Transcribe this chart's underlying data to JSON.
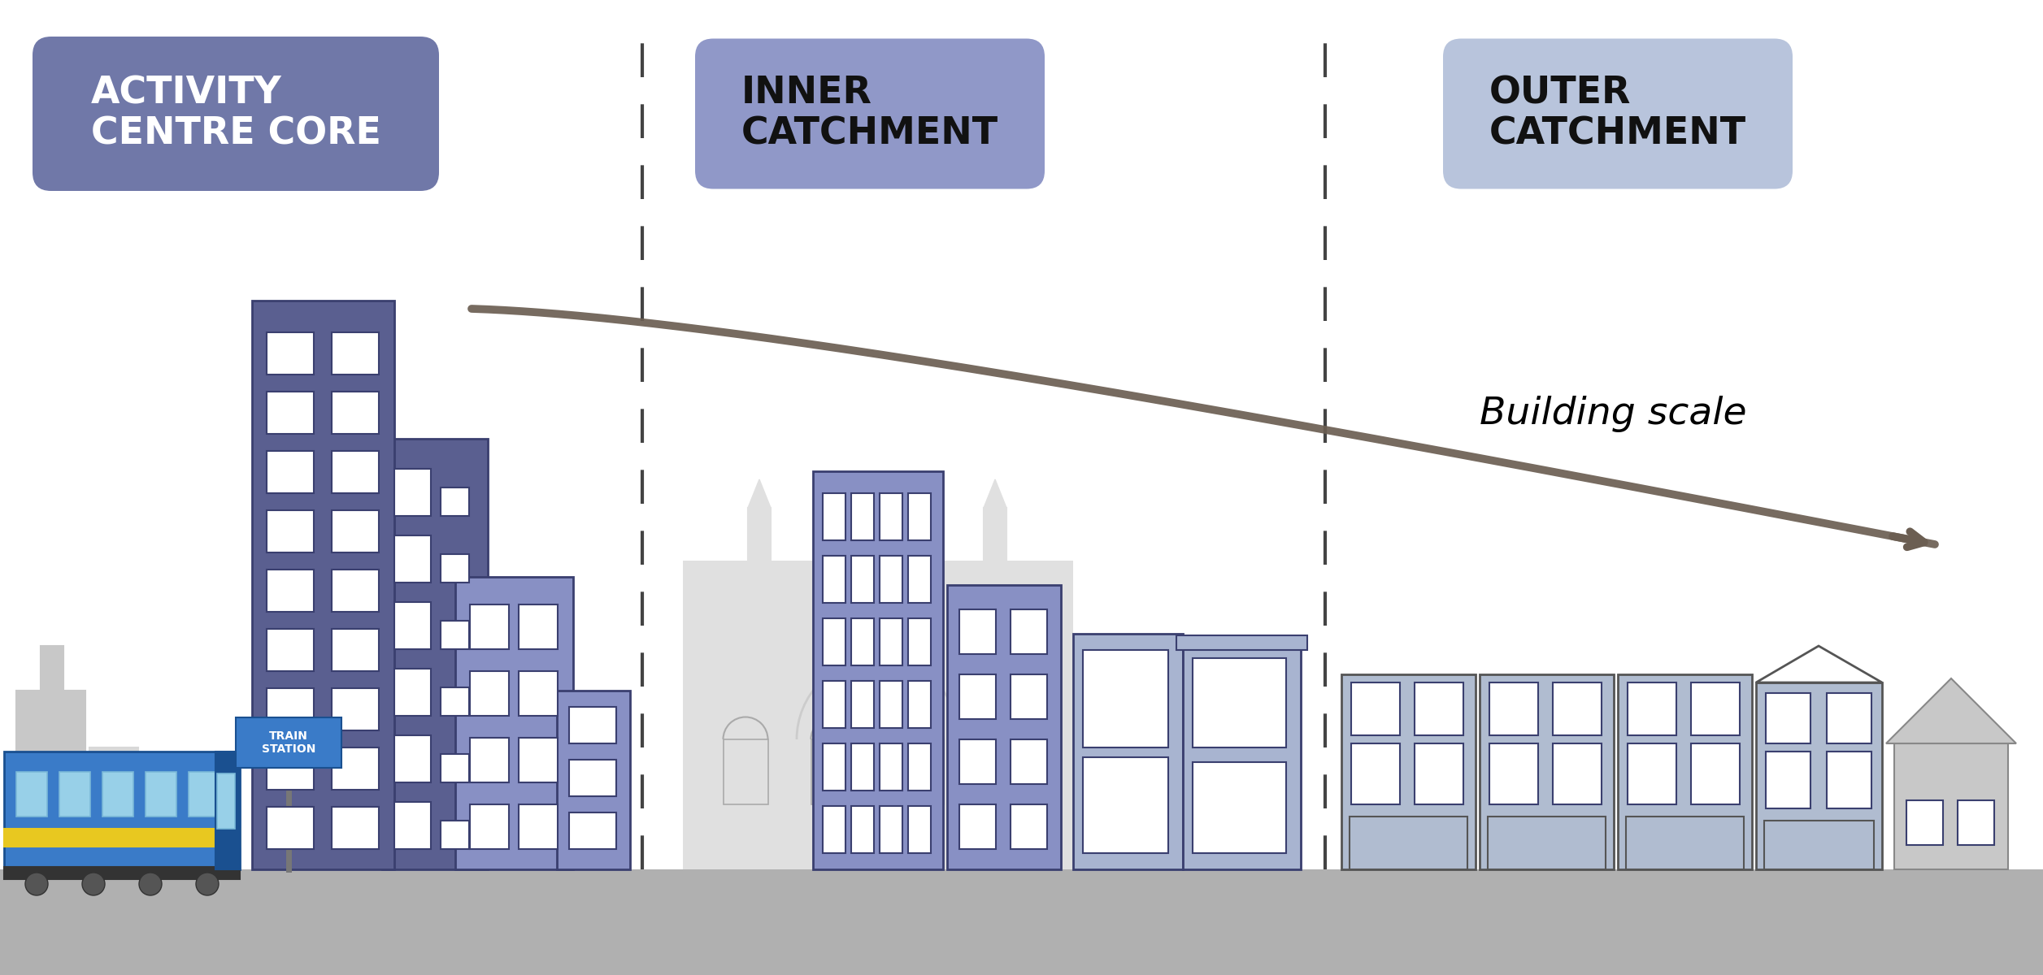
{
  "bg_color": "#ffffff",
  "ground_color": "#b8b8b8",
  "label_activity_core": "ACTIVITY\nCENTRE CORE",
  "label_inner": "INNER\nCATCHMENT",
  "label_outer": "OUTER\nCATCHMENT",
  "label_building_scale": "Building scale",
  "label_train_station": "TRAIN\nSTATION",
  "badge_activity_color": "#7078a8",
  "badge_inner_color": "#9098c8",
  "badge_outer_color": "#b8c4dc",
  "building_dark_color": "#5a5f90",
  "building_mid_color": "#8890c4",
  "building_light_color": "#a8b4d0",
  "building_outline_color": "#3a3f6f",
  "bg_building_color": "#c8c8c8",
  "bg_building_color2": "#d8d8d8",
  "train_blue": "#3a7bc8",
  "train_dark": "#1a5090",
  "train_yellow": "#e8c820",
  "train_window": "#98d0e8",
  "arrow_color": "#6b5e52",
  "dashed_color": "#444444",
  "ground_bar": "#b0b0b0",
  "window_white": "#ffffff",
  "heritage_fill": "#d8d8e0",
  "heritage_bg": "#e0e0e0",
  "outer_light": "#b0bcd0",
  "outer_outline": "#555555",
  "grey_house": "#c8c8c8"
}
